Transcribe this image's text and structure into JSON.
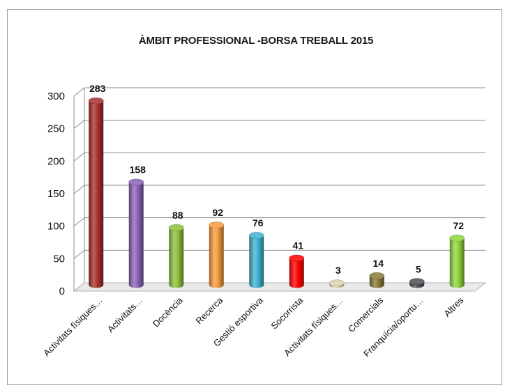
{
  "chart_data": {
    "type": "bar",
    "title": "ÀMBIT PROFESSIONAL -BORSA TREBALL 2015",
    "categories": [
      "Activitats físiques…",
      "Activitats…",
      "Docència",
      "Recerca",
      "Gestió esportiva",
      "Socorrista",
      "Activitats físiques…",
      "Comercials",
      "Franquícia/oportu…",
      "Altres"
    ],
    "values": [
      283,
      158,
      88,
      92,
      76,
      41,
      3,
      14,
      5,
      72
    ],
    "data_labels": [
      "283",
      "158",
      "88",
      "92",
      "76",
      "41",
      "3",
      "14",
      "5",
      "72"
    ],
    "colors": [
      "#a8302c",
      "#8b62b8",
      "#8fbf3c",
      "#f79a3e",
      "#3fb1d2",
      "#ff0000",
      "#d8d3b0",
      "#8a7a3a",
      "#4a4f54",
      "#8fd63f"
    ],
    "ylim": [
      0,
      300
    ],
    "yticks": [
      0,
      50,
      100,
      150,
      200,
      250,
      300
    ],
    "xlabel": "",
    "ylabel": "",
    "grid": true,
    "legend": "none"
  }
}
